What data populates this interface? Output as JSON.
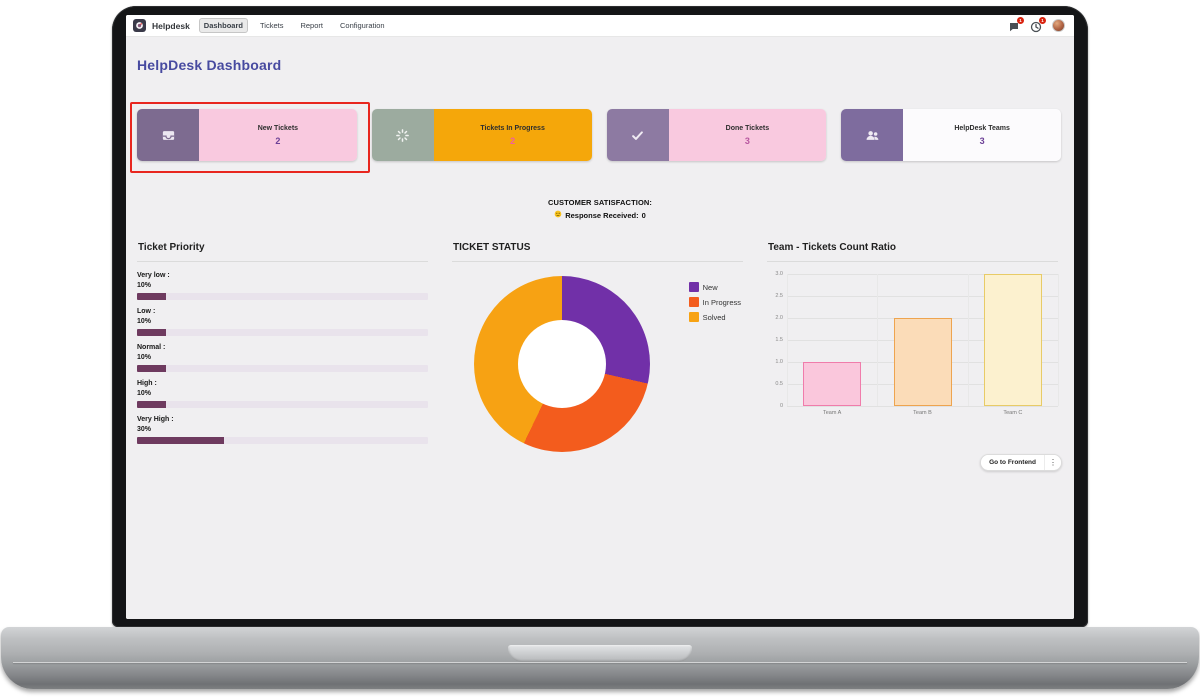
{
  "colors": {
    "accent": "#474aa0",
    "background": "#f0eff1",
    "highlight_border": "#e8261f",
    "badge": "#d9230f"
  },
  "nav": {
    "app_name": "Helpdesk",
    "items": [
      "Dashboard",
      "Tickets",
      "Report",
      "Configuration"
    ],
    "active_item": "Dashboard",
    "messages_badge": "1",
    "activities_badge": "1"
  },
  "page": {
    "title": "HelpDesk Dashboard"
  },
  "kpis": [
    {
      "title": "New Tickets",
      "value": "2",
      "icon": "inbox-icon",
      "icon_bg": "#7d6b90",
      "body_bg": "#f9c9df",
      "value_color": "#6d4197",
      "highlighted": true
    },
    {
      "title": "Tickets In Progress",
      "value": "2",
      "icon": "spinner-icon",
      "icon_bg": "#9cab9f",
      "body_bg": "#f5a70a",
      "value_color": "#ef5f9f",
      "highlighted": false
    },
    {
      "title": "Done Tickets",
      "value": "3",
      "icon": "check-icon",
      "icon_bg": "#8d7aa2",
      "body_bg": "#f9c9df",
      "value_color": "#b857a0",
      "highlighted": false
    },
    {
      "title": "HelpDesk Teams",
      "value": "3",
      "icon": "team-icon",
      "icon_bg": "#7e6c9e",
      "body_bg": "#fcfbfd",
      "value_color": "#6d4197",
      "highlighted": false
    }
  ],
  "satisfaction": {
    "title": "CUSTOMER SATISFACTION:",
    "icon": "neutral-face-icon",
    "label": "Response Received:",
    "value": "0"
  },
  "sections": {
    "priority": {
      "title": "Ticket Priority",
      "bar_fill": "#6e3a5f",
      "bar_track": "#e9e3ec",
      "items": [
        {
          "label": "Very low :",
          "pct": "10%"
        },
        {
          "label": "Low :",
          "pct": "10%"
        },
        {
          "label": "Normal :",
          "pct": "10%"
        },
        {
          "label": "High :",
          "pct": "10%"
        },
        {
          "label": "Very High :",
          "pct": "30%"
        }
      ]
    },
    "status": {
      "title": "TICKET STATUS",
      "legend": [
        {
          "label": "New",
          "color": "#7130a8"
        },
        {
          "label": "In Progress",
          "color": "#f35c1d"
        },
        {
          "label": "Solved",
          "color": "#f7a213"
        }
      ]
    },
    "teams": {
      "title": "Team - Tickets Count Ratio",
      "ytick_labels": [
        "3.0",
        "2.5",
        "2.0",
        "1.5",
        "1.0",
        "0.5",
        "0"
      ],
      "categories": [
        "Team A",
        "Team B",
        "Team C"
      ]
    }
  },
  "footer": {
    "frontend_button": "Go to Frontend",
    "menu_icon": "⋮"
  },
  "chart_data": [
    {
      "type": "bar",
      "title": "Ticket Priority",
      "orientation": "horizontal",
      "categories": [
        "Very low",
        "Low",
        "Normal",
        "High",
        "Very High"
      ],
      "values": [
        10,
        10,
        10,
        10,
        30
      ],
      "unit": "%",
      "xlim": [
        0,
        100
      ],
      "bar_color": "#6e3a5f"
    },
    {
      "type": "pie",
      "subtype": "donut",
      "title": "TICKET STATUS",
      "labels": [
        "New",
        "In Progress",
        "Solved"
      ],
      "values": [
        2,
        2,
        3
      ],
      "colors": [
        "#7130a8",
        "#f35c1d",
        "#f7a213"
      ],
      "legend_position": "right"
    },
    {
      "type": "bar",
      "title": "Team - Tickets Count Ratio",
      "categories": [
        "Team A",
        "Team B",
        "Team C"
      ],
      "values": [
        1,
        2,
        3
      ],
      "colors": [
        "#fac7dc",
        "#fbdcb8",
        "#fcf1cf"
      ],
      "border_colors": [
        "#f07cab",
        "#eea44f",
        "#e8cb66"
      ],
      "ylim": [
        0,
        3
      ],
      "yticks": [
        0,
        0.5,
        1.0,
        1.5,
        2.0,
        2.5,
        3.0
      ],
      "grid": true
    }
  ]
}
